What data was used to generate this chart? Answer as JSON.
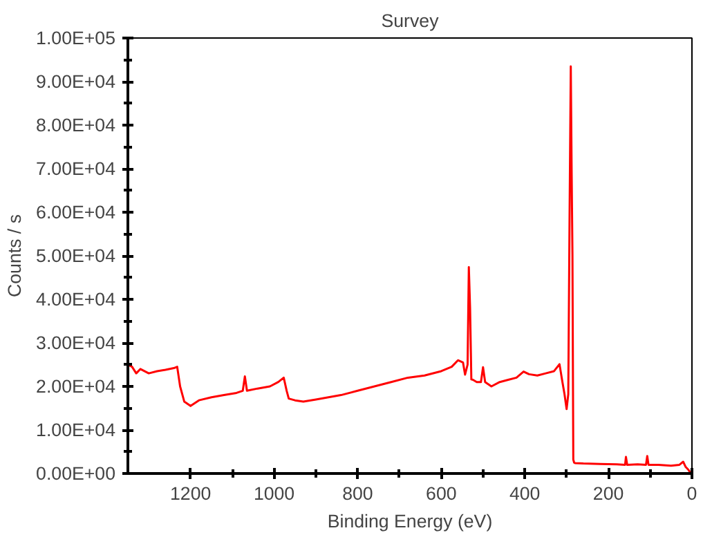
{
  "chart_data": {
    "type": "line",
    "title": "Survey",
    "xlabel": "Binding Energy (eV)",
    "ylabel": "Counts / s",
    "xlim": [
      1350,
      0
    ],
    "xticks": [
      1200,
      1000,
      800,
      600,
      400,
      200,
      0
    ],
    "ylim": [
      0,
      100000
    ],
    "yticks": [
      {
        "value": 0,
        "label": "0.00E+00"
      },
      {
        "value": 10000,
        "label": "1.00E+04"
      },
      {
        "value": 20000,
        "label": "2.00E+04"
      },
      {
        "value": 30000,
        "label": "3.00E+04"
      },
      {
        "value": 40000,
        "label": "4.00E+04"
      },
      {
        "value": 50000,
        "label": "5.00E+04"
      },
      {
        "value": 60000,
        "label": "6.00E+04"
      },
      {
        "value": 70000,
        "label": "7.00E+04"
      },
      {
        "value": 80000,
        "label": "8.00E+04"
      },
      {
        "value": 90000,
        "label": "9.00E+04"
      },
      {
        "value": 100000,
        "label": "1.00E+05"
      }
    ],
    "grid": false,
    "marker": "none",
    "line_style": "solid",
    "series": [
      {
        "color": "#ff0000",
        "x": [
          1350,
          1340,
          1330,
          1320,
          1300,
          1280,
          1260,
          1240,
          1232,
          1225,
          1215,
          1200,
          1180,
          1150,
          1120,
          1090,
          1075,
          1070,
          1065,
          1040,
          1010,
          990,
          977,
          970,
          965,
          950,
          930,
          900,
          870,
          840,
          800,
          760,
          720,
          680,
          640,
          600,
          575,
          560,
          548,
          543,
          537,
          534,
          531,
          528,
          524,
          515,
          505,
          500,
          495,
          480,
          460,
          440,
          420,
          403,
          390,
          370,
          350,
          330,
          317,
          310,
          305,
          300,
          296,
          293,
          290,
          288,
          286,
          284,
          282,
          280,
          260,
          220,
          180,
          160,
          158,
          155,
          130,
          110,
          107,
          104,
          80,
          50,
          30,
          21,
          15,
          8,
          5,
          0
        ],
        "values": [
          25000,
          24500,
          23000,
          24000,
          23000,
          23500,
          23800,
          24200,
          24500,
          20000,
          16500,
          15500,
          16800,
          17500,
          18000,
          18500,
          19000,
          22300,
          19000,
          19500,
          20000,
          21000,
          22000,
          19000,
          17200,
          16800,
          16500,
          17000,
          17500,
          18000,
          19000,
          20000,
          21000,
          22000,
          22500,
          23500,
          24500,
          26000,
          25500,
          22700,
          25000,
          47400,
          38000,
          21600,
          21500,
          21000,
          21000,
          24400,
          21000,
          20000,
          21000,
          21500,
          22000,
          23400,
          22800,
          22500,
          23000,
          23500,
          25100,
          21000,
          18200,
          14800,
          18200,
          58100,
          93500,
          70000,
          50200,
          3200,
          2500,
          2400,
          2300,
          2200,
          2100,
          2000,
          3800,
          2000,
          2100,
          2000,
          4000,
          2000,
          2000,
          1800,
          2000,
          2700,
          1500,
          800,
          300,
          200
        ]
      }
    ]
  }
}
